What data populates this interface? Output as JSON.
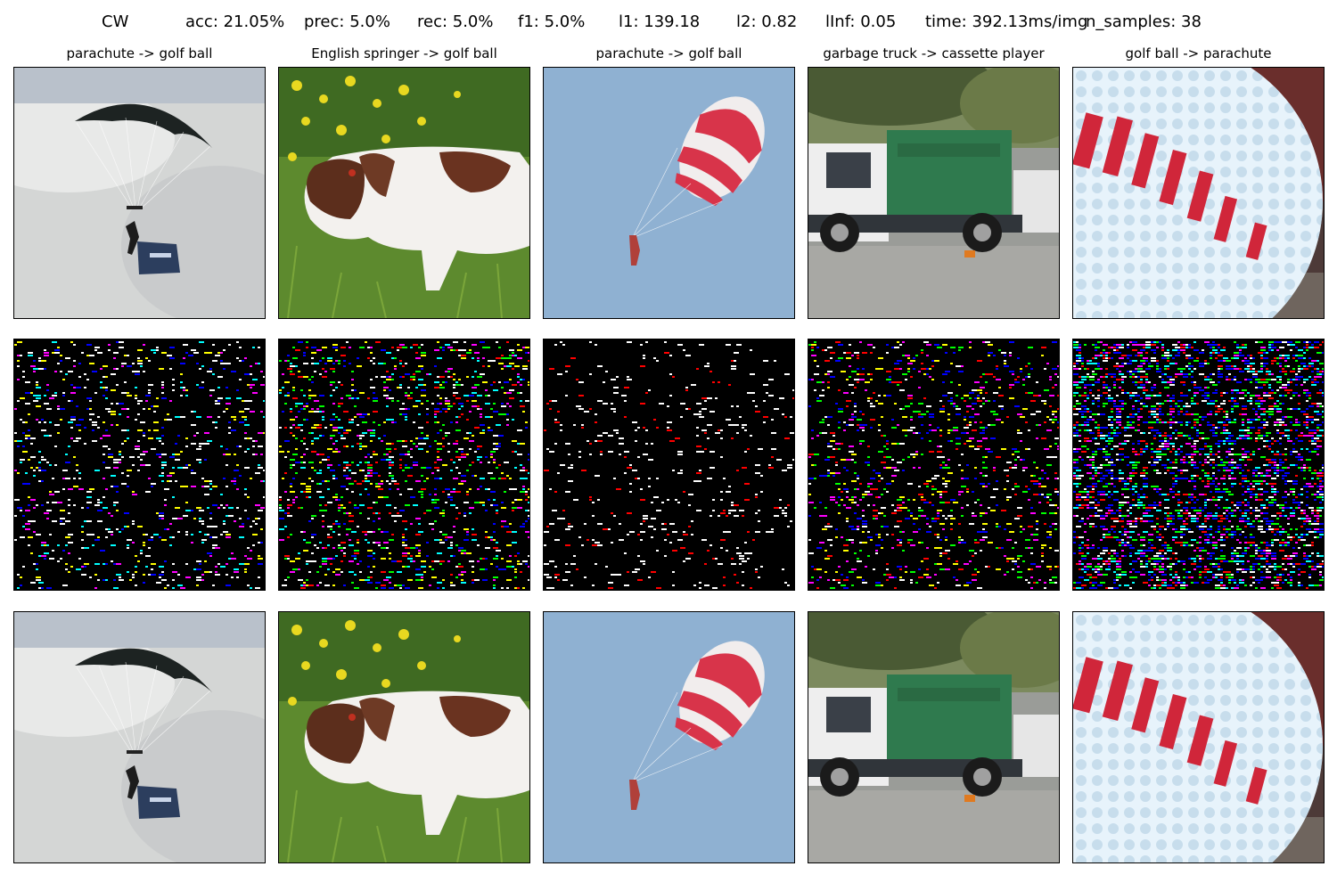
{
  "header": {
    "method": "CW",
    "acc": "acc: 21.05%",
    "prec": "prec: 5.0%",
    "rec": "rec: 5.0%",
    "f1": "f1: 5.0%",
    "l1": "l1: 139.18",
    "l2": "l2: 0.82",
    "linf": "lInf: 0.05",
    "time": "time: 392.13ms/img",
    "n_samples": "n_samples: 38"
  },
  "columns": [
    {
      "title": "parachute -> golf ball",
      "scene": "dark-parachute",
      "noise_colors": [
        "#ffffff",
        "#ffffff",
        "#ffffff",
        "#00ffff",
        "#ff00ff",
        "#0000ff",
        "#ffff00"
      ]
    },
    {
      "title": "English springer -> golf ball",
      "scene": "springer-dog",
      "noise_colors": [
        "#ffffff",
        "#ffff00",
        "#00ff00",
        "#ff0000",
        "#0000ff",
        "#ff00ff",
        "#00ffff"
      ]
    },
    {
      "title": "parachute -> golf ball",
      "scene": "red-parachute",
      "noise_colors": [
        "#ffffff",
        "#ffffff",
        "#ffffff",
        "#ff0000"
      ]
    },
    {
      "title": "garbage truck -> cassette player",
      "scene": "garbage-truck",
      "noise_colors": [
        "#ffffff",
        "#0000ff",
        "#00ff00",
        "#ffff00",
        "#ff0000",
        "#ff00ff"
      ]
    },
    {
      "title": "golf ball -> parachute",
      "scene": "golf-ball",
      "noise_colors": [
        "#0000ff",
        "#0000ff",
        "#00ffff",
        "#ffffff",
        "#ff0000",
        "#ff00ff",
        "#00ff00"
      ]
    }
  ],
  "rows": [
    "original",
    "perturbation",
    "adversarial"
  ]
}
